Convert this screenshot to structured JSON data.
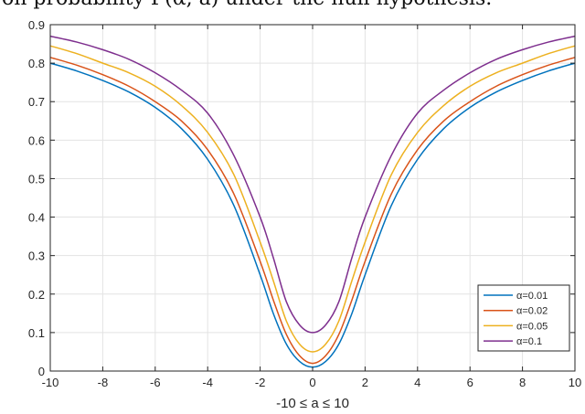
{
  "caption": "on probability F(α, a) under the null hypothesis.",
  "chart_data": {
    "type": "line",
    "title": "",
    "xlabel": "-10 ≤ a ≤ 10",
    "ylabel": "",
    "xlim": [
      -10,
      10
    ],
    "ylim": [
      0,
      0.9
    ],
    "xticks": [
      -10,
      -8,
      -6,
      -4,
      -2,
      0,
      2,
      4,
      6,
      8,
      10
    ],
    "yticks": [
      0,
      0.1,
      0.2,
      0.3,
      0.4,
      0.5,
      0.6,
      0.7,
      0.8,
      0.9
    ],
    "grid": true,
    "legend": "bottom-right",
    "x": [
      -10,
      -9,
      -8,
      -7,
      -6,
      -5,
      -4,
      -3,
      -2,
      -1.5,
      -1,
      -0.5,
      0,
      0.5,
      1,
      1.5,
      2,
      3,
      4,
      5,
      6,
      7,
      8,
      9,
      10
    ],
    "series": [
      {
        "name": "α=0.01",
        "color": "#0072BD",
        "values": [
          0.8,
          0.78,
          0.755,
          0.725,
          0.685,
          0.63,
          0.55,
          0.43,
          0.25,
          0.15,
          0.07,
          0.025,
          0.01,
          0.025,
          0.07,
          0.15,
          0.25,
          0.43,
          0.55,
          0.63,
          0.685,
          0.725,
          0.755,
          0.78,
          0.8
        ]
      },
      {
        "name": "α=0.02",
        "color": "#D95319",
        "values": [
          0.815,
          0.795,
          0.77,
          0.74,
          0.7,
          0.65,
          0.575,
          0.46,
          0.285,
          0.185,
          0.095,
          0.04,
          0.02,
          0.04,
          0.095,
          0.185,
          0.285,
          0.46,
          0.575,
          0.65,
          0.7,
          0.74,
          0.77,
          0.795,
          0.815
        ]
      },
      {
        "name": "α=0.05",
        "color": "#EDB120",
        "values": [
          0.845,
          0.825,
          0.8,
          0.775,
          0.74,
          0.69,
          0.62,
          0.51,
          0.335,
          0.235,
          0.13,
          0.07,
          0.05,
          0.07,
          0.13,
          0.235,
          0.335,
          0.51,
          0.62,
          0.69,
          0.74,
          0.775,
          0.8,
          0.825,
          0.845
        ]
      },
      {
        "name": "α=0.1",
        "color": "#7E2F8E",
        "values": [
          0.87,
          0.855,
          0.835,
          0.81,
          0.775,
          0.73,
          0.67,
          0.56,
          0.4,
          0.295,
          0.18,
          0.12,
          0.1,
          0.12,
          0.18,
          0.295,
          0.4,
          0.56,
          0.67,
          0.73,
          0.775,
          0.81,
          0.835,
          0.855,
          0.87
        ]
      }
    ]
  }
}
